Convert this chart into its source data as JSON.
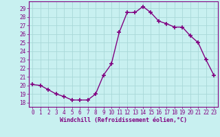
{
  "x": [
    0,
    1,
    2,
    3,
    4,
    5,
    6,
    7,
    8,
    9,
    10,
    11,
    12,
    13,
    14,
    15,
    16,
    17,
    18,
    19,
    20,
    21,
    22,
    23
  ],
  "y": [
    20.1,
    20.0,
    19.5,
    19.0,
    18.7,
    18.3,
    18.3,
    18.3,
    19.0,
    21.2,
    22.5,
    26.2,
    28.5,
    28.5,
    29.2,
    28.5,
    27.5,
    27.2,
    26.8,
    26.8,
    25.8,
    25.0,
    23.0,
    21.2
  ],
  "line_color": "#800080",
  "marker": "+",
  "marker_size": 4,
  "bg_color": "#c8f0f0",
  "grid_color": "#a8d8d8",
  "xlabel": "Windchill (Refroidissement éolien,°C)",
  "ylabel": "",
  "ylim_min": 17.5,
  "ylim_max": 29.8,
  "xlim_min": -0.5,
  "xlim_max": 23.5,
  "yticks": [
    18,
    19,
    20,
    21,
    22,
    23,
    24,
    25,
    26,
    27,
    28,
    29
  ],
  "xticks": [
    0,
    1,
    2,
    3,
    4,
    5,
    6,
    7,
    8,
    9,
    10,
    11,
    12,
    13,
    14,
    15,
    16,
    17,
    18,
    19,
    20,
    21,
    22,
    23
  ],
  "tick_color": "#800080",
  "label_color": "#800080",
  "spine_color": "#800080",
  "tick_fontsize": 5.5,
  "xlabel_fontsize": 6,
  "linewidth": 1.0,
  "marker_linewidth": 1.2
}
